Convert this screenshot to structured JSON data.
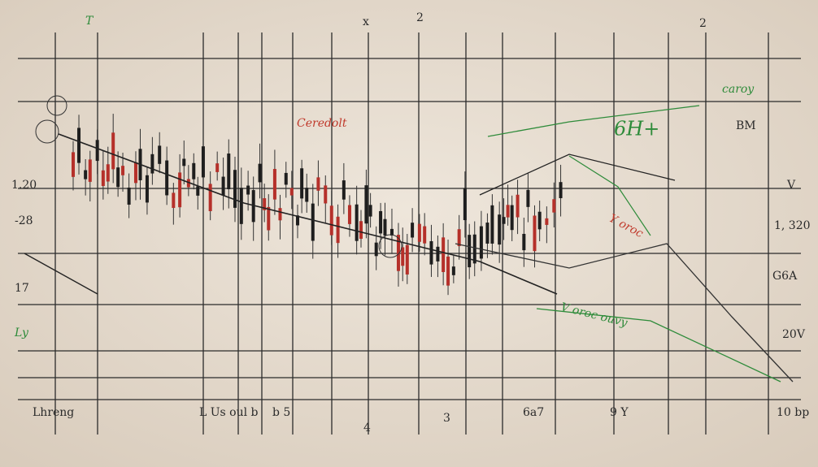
{
  "top_labels": [
    "T",
    "x",
    "2",
    "2"
  ],
  "annotations": {
    "red_note": "Ceredolt",
    "green_note": "caroy",
    "green_big": "6H+",
    "right_note": "BM",
    "red_diag": "Y oroc",
    "green_diag": "V oroc ouvy"
  },
  "left_labels": [
    "1.20",
    "-28",
    "17",
    "Ly"
  ],
  "right_labels": [
    "V",
    "1, 320",
    "G6A",
    "20V"
  ],
  "bottom_labels": [
    "Lhreng",
    "L Us oul b",
    "b 5",
    "4",
    "3",
    "6a7",
    "9 Y",
    "10 bp"
  ]
}
